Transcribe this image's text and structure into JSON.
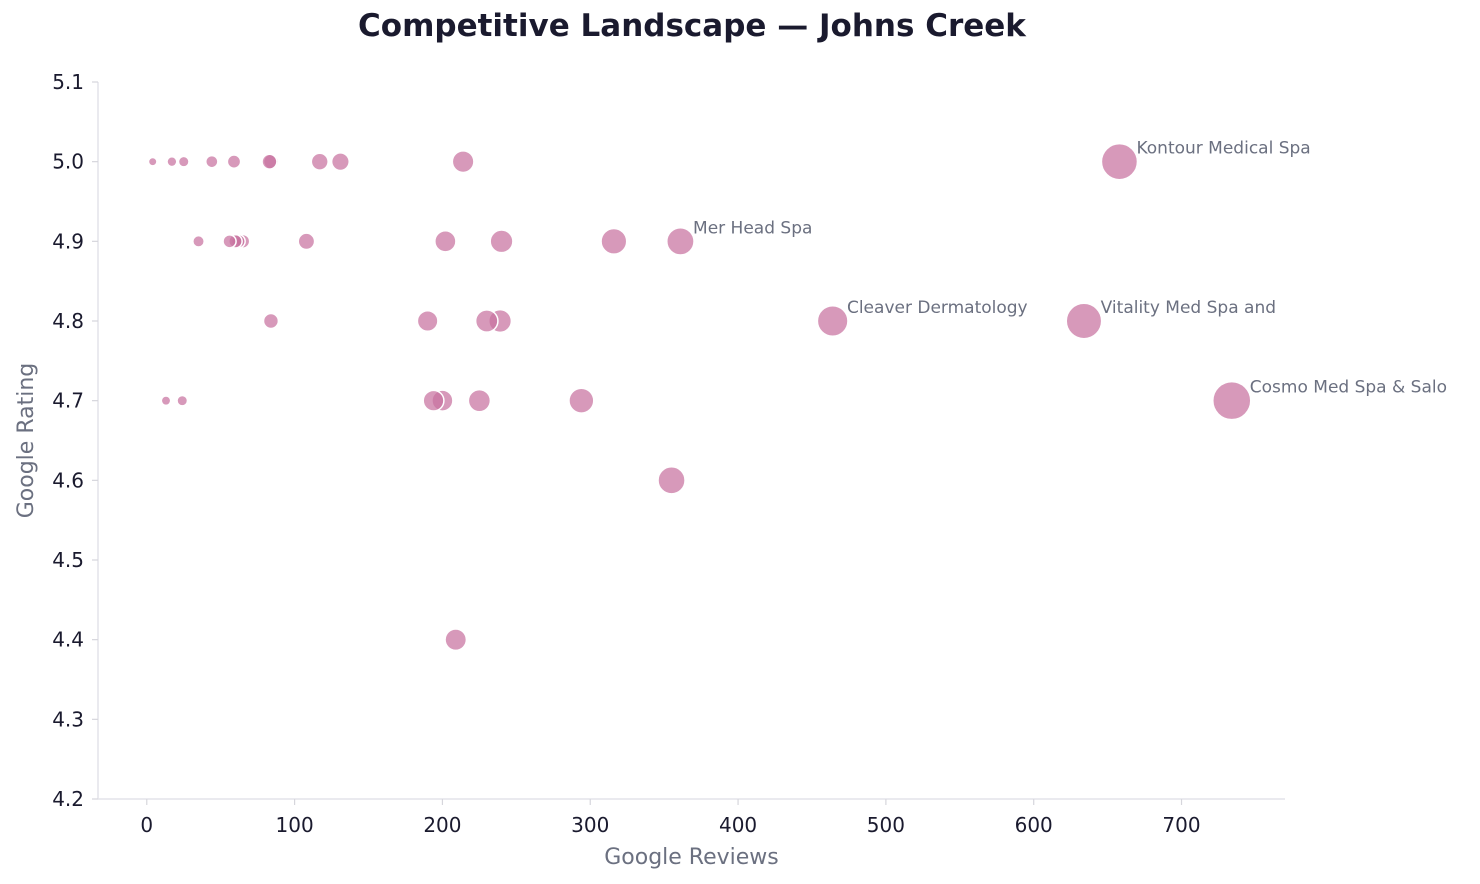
{
  "chart_data": {
    "type": "scatter",
    "title": "Competitive Landscape — Johns Creek",
    "xlabel": "Google Reviews",
    "ylabel": "Google Rating",
    "xlim": [
      -33,
      770
    ],
    "ylim": [
      4.2,
      5.1
    ],
    "xticks": [
      0,
      100,
      200,
      300,
      400,
      500,
      600,
      700
    ],
    "yticks": [
      4.2,
      4.3,
      4.4,
      4.5,
      4.6,
      4.7,
      4.8,
      4.9,
      5.0,
      5.1
    ],
    "grid": false,
    "marker_color": "#c8729f",
    "marker_edge_color": "#ffffff",
    "marker_size_encodes": "Google Reviews",
    "points": [
      {
        "x": 4,
        "y": 5.0
      },
      {
        "x": 17,
        "y": 5.0
      },
      {
        "x": 25,
        "y": 5.0
      },
      {
        "x": 44,
        "y": 5.0
      },
      {
        "x": 59,
        "y": 5.0
      },
      {
        "x": 83,
        "y": 5.0
      },
      {
        "x": 84,
        "y": 5.0
      },
      {
        "x": 117,
        "y": 5.0
      },
      {
        "x": 131,
        "y": 5.0
      },
      {
        "x": 214,
        "y": 5.0
      },
      {
        "x": 658,
        "y": 5.0,
        "label": "Kontour Medical Spa"
      },
      {
        "x": 35,
        "y": 4.9
      },
      {
        "x": 56,
        "y": 4.9
      },
      {
        "x": 60,
        "y": 4.9
      },
      {
        "x": 62,
        "y": 4.9
      },
      {
        "x": 65,
        "y": 4.9
      },
      {
        "x": 108,
        "y": 4.9
      },
      {
        "x": 202,
        "y": 4.9
      },
      {
        "x": 240,
        "y": 4.9
      },
      {
        "x": 316,
        "y": 4.9
      },
      {
        "x": 361,
        "y": 4.9,
        "label": "Mer Head Spa"
      },
      {
        "x": 84,
        "y": 4.8
      },
      {
        "x": 190,
        "y": 4.8
      },
      {
        "x": 230,
        "y": 4.8
      },
      {
        "x": 239,
        "y": 4.8
      },
      {
        "x": 464,
        "y": 4.8,
        "label": "Cleaver Dermatology"
      },
      {
        "x": 634,
        "y": 4.8,
        "label": "Vitality Med Spa and"
      },
      {
        "x": 13,
        "y": 4.7
      },
      {
        "x": 24,
        "y": 4.7
      },
      {
        "x": 194,
        "y": 4.7
      },
      {
        "x": 200,
        "y": 4.7
      },
      {
        "x": 225,
        "y": 4.7
      },
      {
        "x": 294,
        "y": 4.7
      },
      {
        "x": 734,
        "y": 4.7,
        "label": "Cosmo Med Spa & Salo"
      },
      {
        "x": 355,
        "y": 4.6
      },
      {
        "x": 209,
        "y": 4.4
      }
    ]
  }
}
